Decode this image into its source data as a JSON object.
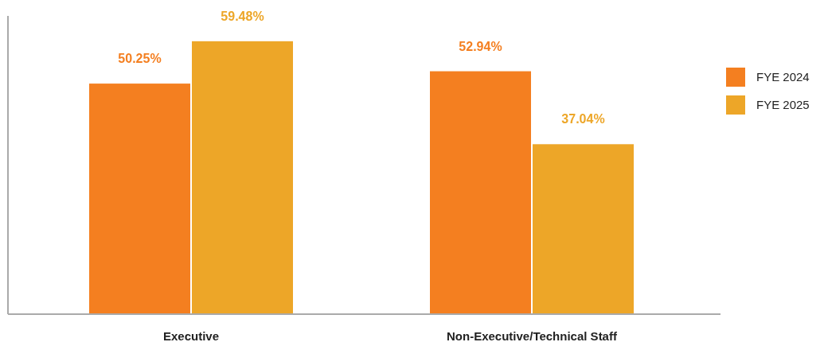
{
  "chart_data": {
    "type": "bar",
    "categories": [
      "Executive",
      "Non-Executive/Technical Staff"
    ],
    "series": [
      {
        "name": "FYE 2024",
        "color": "#f47f20",
        "values": [
          50.25,
          52.94
        ],
        "value_labels": [
          "50.25%",
          "52.94%"
        ]
      },
      {
        "name": "FYE 2025",
        "color": "#eda628",
        "values": [
          59.48,
          37.04
        ],
        "value_labels": [
          "59.48%",
          "37.04%"
        ]
      }
    ],
    "ylim": [
      0,
      65
    ],
    "legend": "right"
  }
}
